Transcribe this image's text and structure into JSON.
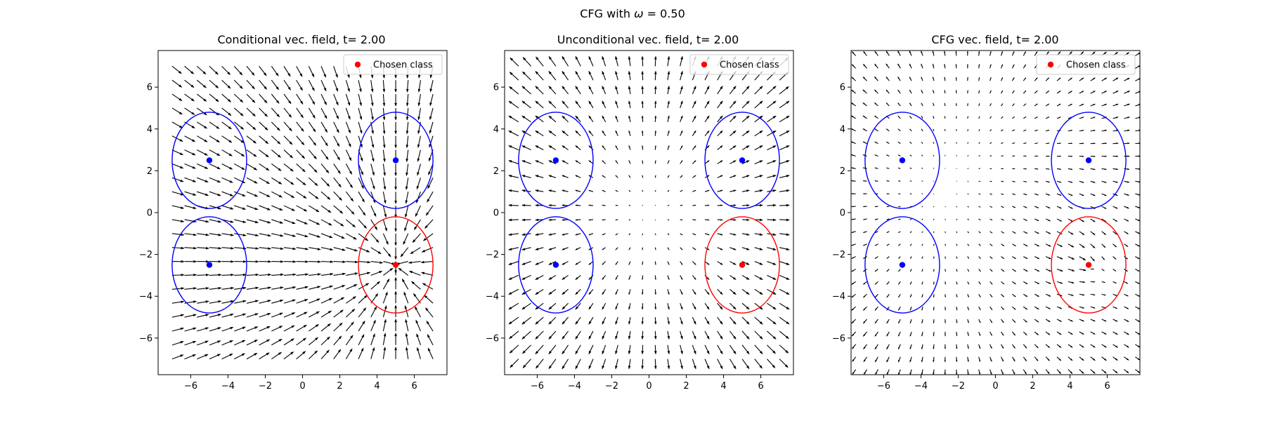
{
  "figure": {
    "suptitle_prefix": "CFG with ",
    "suptitle_symbol": "ω",
    "suptitle_suffix": " = 0.50"
  },
  "colors": {
    "chosen": "#ff0000",
    "other": "#0000ff",
    "arrow": "#000000",
    "axes": "#000000",
    "background": "#ffffff"
  },
  "chart_data": [
    {
      "type": "quiver",
      "title": "Conditional vec. field, t= 2.00",
      "field": "conditional",
      "xlim": [
        -7.75,
        7.75
      ],
      "ylim": [
        -7.75,
        7.75
      ],
      "xticks": [
        -6,
        -4,
        -2,
        0,
        2,
        4,
        6
      ],
      "yticks": [
        -6,
        -4,
        -2,
        0,
        2,
        4,
        6
      ],
      "grid_range": [
        -7,
        7
      ],
      "grid_count": 22,
      "legend": {
        "label": "Chosen class",
        "position": "upper right"
      },
      "class_centers": [
        {
          "x": -5,
          "y": 2.5,
          "chosen": false
        },
        {
          "x": 5,
          "y": 2.5,
          "chosen": false
        },
        {
          "x": -5,
          "y": -2.5,
          "chosen": false
        },
        {
          "x": 5,
          "y": -2.5,
          "chosen": true
        }
      ],
      "ellipse_radii": [
        2,
        2.3
      ]
    },
    {
      "type": "quiver",
      "title": "Unconditional vec. field, t= 2.00",
      "field": "unconditional",
      "xlim": [
        -7.75,
        7.75
      ],
      "ylim": [
        -7.75,
        7.75
      ],
      "xticks": [
        -6,
        -4,
        -2,
        0,
        2,
        4,
        6
      ],
      "yticks": [
        -6,
        -4,
        -2,
        0,
        2,
        4,
        6
      ],
      "grid_range": [
        -7,
        7
      ],
      "grid_count": 22,
      "legend": {
        "label": "Chosen class",
        "position": "upper right"
      },
      "class_centers": [
        {
          "x": -5,
          "y": 2.5,
          "chosen": false
        },
        {
          "x": 5,
          "y": 2.5,
          "chosen": false
        },
        {
          "x": -5,
          "y": -2.5,
          "chosen": false
        },
        {
          "x": 5,
          "y": -2.5,
          "chosen": true
        }
      ],
      "ellipse_radii": [
        2,
        2.3
      ]
    },
    {
      "type": "quiver",
      "title": "CFG vec. field, t= 2.00",
      "field": "cfg",
      "xlim": [
        -7.75,
        7.75
      ],
      "ylim": [
        -7.75,
        7.75
      ],
      "xticks": [
        -6,
        -4,
        -2,
        0,
        2,
        4,
        6
      ],
      "yticks": [
        -6,
        -4,
        -2,
        0,
        2,
        4,
        6
      ],
      "grid_range": [
        -7.5,
        7.5
      ],
      "grid_count": 26,
      "legend": {
        "label": "Chosen class",
        "position": "upper right"
      },
      "class_centers": [
        {
          "x": -5,
          "y": 2.5,
          "chosen": false
        },
        {
          "x": 5,
          "y": 2.5,
          "chosen": false
        },
        {
          "x": -5,
          "y": -2.5,
          "chosen": false
        },
        {
          "x": 5,
          "y": -2.5,
          "chosen": true
        }
      ],
      "ellipse_radii": [
        2,
        2.3
      ]
    }
  ]
}
